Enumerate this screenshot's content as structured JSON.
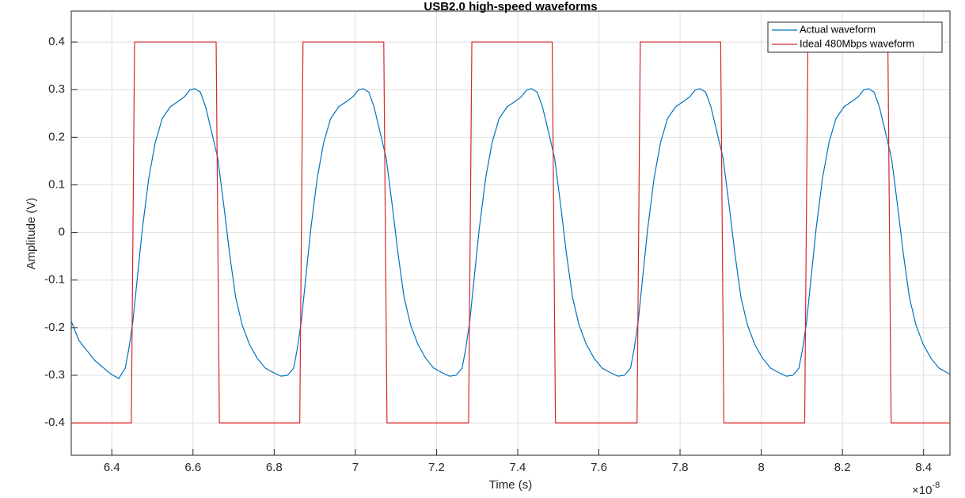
{
  "chart_data": {
    "type": "line",
    "title": "USB2.0 high-speed waveforms",
    "x_label": "Time (s)",
    "y_label": "Amplitude (V)",
    "x_multiplier": "×10",
    "x_exponent": "-8",
    "xlim": [
      6.3,
      8.465
    ],
    "ylim": [
      -0.468,
      0.465
    ],
    "xticks": [
      6.4,
      6.6,
      6.8,
      7,
      7.2,
      7.4,
      7.6,
      7.8,
      8,
      8.2,
      8.4
    ],
    "yticks": [
      -0.4,
      -0.3,
      -0.2,
      -0.1,
      0,
      0.1,
      0.2,
      0.3,
      0.4
    ],
    "grid": true,
    "legend": "upper right",
    "series": [
      {
        "name": "Actual waveform",
        "color": "#0072bd",
        "x": [
          6.3,
          6.319,
          6.358,
          6.397,
          6.417,
          6.433,
          6.442,
          6.452,
          6.462,
          6.475,
          6.491,
          6.507,
          6.524,
          6.544,
          6.563,
          6.579,
          6.592,
          6.604,
          6.618,
          6.631,
          6.645,
          6.661,
          6.676,
          6.69,
          6.705,
          6.721,
          6.739,
          6.758,
          6.778,
          6.797,
          6.817,
          6.833,
          6.848,
          6.857,
          6.867,
          6.877,
          6.89,
          6.906,
          6.922,
          6.939,
          6.959,
          6.978,
          6.994,
          7.007,
          7.019,
          7.033,
          7.046,
          7.06,
          7.076,
          7.091,
          7.105,
          7.12,
          7.136,
          7.154,
          7.173,
          7.193,
          7.212,
          7.232,
          7.248,
          7.263,
          7.272,
          7.282,
          7.292,
          7.305,
          7.321,
          7.337,
          7.354,
          7.374,
          7.393,
          7.409,
          7.422,
          7.434,
          7.448,
          7.461,
          7.475,
          7.491,
          7.506,
          7.52,
          7.535,
          7.551,
          7.569,
          7.588,
          7.608,
          7.627,
          7.647,
          7.663,
          7.678,
          7.687,
          7.697,
          7.707,
          7.72,
          7.736,
          7.752,
          7.769,
          7.789,
          7.808,
          7.824,
          7.837,
          7.849,
          7.863,
          7.876,
          7.89,
          7.906,
          7.921,
          7.935,
          7.95,
          7.966,
          7.984,
          8.003,
          8.023,
          8.042,
          8.062,
          8.078,
          8.093,
          8.102,
          8.112,
          8.122,
          8.135,
          8.151,
          8.167,
          8.184,
          8.204,
          8.223,
          8.239,
          8.252,
          8.264,
          8.278,
          8.291,
          8.305,
          8.321,
          8.336,
          8.35,
          8.365,
          8.381,
          8.399,
          8.418,
          8.438,
          8.457,
          8.465
        ],
        "values": [
          -0.186,
          -0.227,
          -0.269,
          -0.297,
          -0.307,
          -0.285,
          -0.244,
          -0.186,
          -0.102,
          0.006,
          0.114,
          0.189,
          0.239,
          0.264,
          0.275,
          0.285,
          0.299,
          0.302,
          0.295,
          0.264,
          0.214,
          0.156,
          0.056,
          -0.044,
          -0.136,
          -0.194,
          -0.235,
          -0.264,
          -0.285,
          -0.294,
          -0.302,
          -0.3,
          -0.285,
          -0.244,
          -0.186,
          -0.102,
          0.006,
          0.114,
          0.189,
          0.239,
          0.264,
          0.275,
          0.285,
          0.299,
          0.302,
          0.295,
          0.264,
          0.214,
          0.156,
          0.056,
          -0.044,
          -0.136,
          -0.194,
          -0.235,
          -0.264,
          -0.285,
          -0.294,
          -0.302,
          -0.3,
          -0.285,
          -0.244,
          -0.186,
          -0.102,
          0.006,
          0.114,
          0.189,
          0.239,
          0.264,
          0.275,
          0.285,
          0.299,
          0.302,
          0.295,
          0.264,
          0.214,
          0.156,
          0.056,
          -0.044,
          -0.136,
          -0.194,
          -0.235,
          -0.264,
          -0.285,
          -0.294,
          -0.302,
          -0.3,
          -0.285,
          -0.244,
          -0.186,
          -0.102,
          0.006,
          0.114,
          0.189,
          0.239,
          0.264,
          0.275,
          0.285,
          0.299,
          0.302,
          0.295,
          0.264,
          0.214,
          0.156,
          0.056,
          -0.044,
          -0.136,
          -0.194,
          -0.235,
          -0.264,
          -0.285,
          -0.294,
          -0.302,
          -0.3,
          -0.285,
          -0.244,
          -0.186,
          -0.102,
          0.006,
          0.114,
          0.189,
          0.239,
          0.264,
          0.275,
          0.285,
          0.299,
          0.302,
          0.295,
          0.264,
          0.214,
          0.156,
          0.056,
          -0.044,
          -0.136,
          -0.194,
          -0.235,
          -0.264,
          -0.285,
          -0.294,
          -0.298
        ]
      },
      {
        "name": "Ideal 480Mbps waveform",
        "color": "#d62728",
        "x": [
          6.3,
          6.448,
          6.456,
          6.657,
          6.665,
          6.863,
          6.871,
          7.07,
          7.078,
          7.279,
          7.287,
          7.485,
          7.493,
          7.694,
          7.702,
          7.9,
          7.908,
          8.107,
          8.115,
          8.312,
          8.32,
          8.465
        ],
        "values": [
          -0.4,
          -0.4,
          0.4,
          0.4,
          -0.4,
          -0.4,
          0.4,
          0.4,
          -0.4,
          -0.4,
          0.4,
          0.4,
          -0.4,
          -0.4,
          0.4,
          0.4,
          -0.4,
          -0.4,
          0.4,
          0.4,
          -0.4,
          -0.4
        ]
      }
    ]
  }
}
